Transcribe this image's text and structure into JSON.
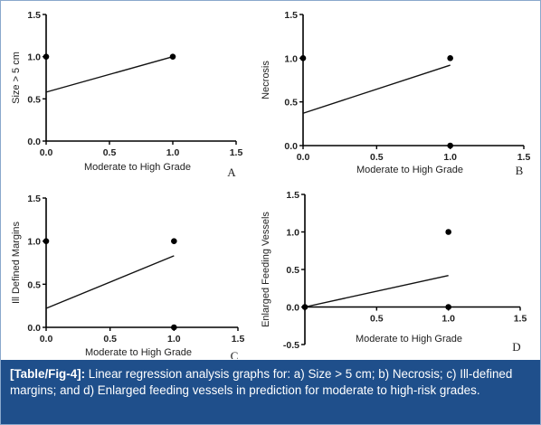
{
  "chart_data": [
    {
      "type": "scatter",
      "letter": "A",
      "xlabel": "Moderate to High Grade",
      "ylabel": "Size > 5 cm",
      "xlim": [
        0.0,
        1.5
      ],
      "ylim": [
        0.0,
        1.5
      ],
      "xticks": [
        "0.0",
        "0.5",
        "1.0",
        "1.5"
      ],
      "yticks": [
        "0.0",
        "0.5",
        "1.0",
        "1.5"
      ],
      "points": [
        {
          "x": 0.0,
          "y": 1.0
        },
        {
          "x": 1.0,
          "y": 1.0
        }
      ],
      "regression": {
        "x": [
          0.0,
          1.0
        ],
        "y": [
          0.58,
          1.0
        ]
      }
    },
    {
      "type": "scatter",
      "letter": "B",
      "xlabel": "Moderate to High Grade",
      "ylabel": "Necrosis",
      "xlim": [
        0.0,
        1.5
      ],
      "ylim": [
        0.0,
        1.5
      ],
      "xticks": [
        "0.0",
        "0.5",
        "1.0",
        "1.5"
      ],
      "yticks": [
        "0.0",
        "0.5",
        "1.0",
        "1.5"
      ],
      "points": [
        {
          "x": 0.0,
          "y": 1.0
        },
        {
          "x": 1.0,
          "y": 1.0
        },
        {
          "x": 1.0,
          "y": 0.0
        }
      ],
      "regression": {
        "x": [
          0.0,
          1.0
        ],
        "y": [
          0.37,
          0.92
        ]
      }
    },
    {
      "type": "scatter",
      "letter": "C",
      "xlabel": "Moderate to High Grade",
      "ylabel": "Ill Defined Margins",
      "xlim": [
        0.0,
        1.5
      ],
      "ylim": [
        0.0,
        1.5
      ],
      "xticks": [
        "0.0",
        "0.5",
        "1.0",
        "1.5"
      ],
      "yticks": [
        "0.0",
        "0.5",
        "1.0",
        "1.5"
      ],
      "points": [
        {
          "x": 0.0,
          "y": 1.0
        },
        {
          "x": 1.0,
          "y": 1.0
        },
        {
          "x": 1.0,
          "y": 0.0
        }
      ],
      "regression": {
        "x": [
          0.0,
          1.0
        ],
        "y": [
          0.22,
          0.83
        ]
      }
    },
    {
      "type": "scatter",
      "letter": "D",
      "xlabel": "Moderate to High Grade",
      "ylabel": "Enlarged Feeding Vessels",
      "xlim": [
        0.0,
        1.5
      ],
      "ylim": [
        -0.5,
        1.5
      ],
      "xticks": [
        "0.5",
        "1.0",
        "1.5"
      ],
      "yticks": [
        "-0.5",
        "0.0",
        "0.5",
        "1.0",
        "1.5"
      ],
      "points": [
        {
          "x": 0.0,
          "y": 0.0
        },
        {
          "x": 1.0,
          "y": 1.0
        },
        {
          "x": 1.0,
          "y": 0.0
        }
      ],
      "regression": {
        "x": [
          0.0,
          1.0
        ],
        "y": [
          0.0,
          0.42
        ]
      }
    }
  ],
  "caption": {
    "label": "[Table/Fig-4]:",
    "text": " Linear regression analysis graphs for: a) Size > 5 cm; b) Necrosis; c) Ill-defined margins; and d) Enlarged feeding vessels in prediction for moderate to high-risk grades."
  },
  "colors": {
    "caption_background": "#1f4f8b",
    "caption_text": "#ffffff",
    "border": "#8aa8cc"
  }
}
